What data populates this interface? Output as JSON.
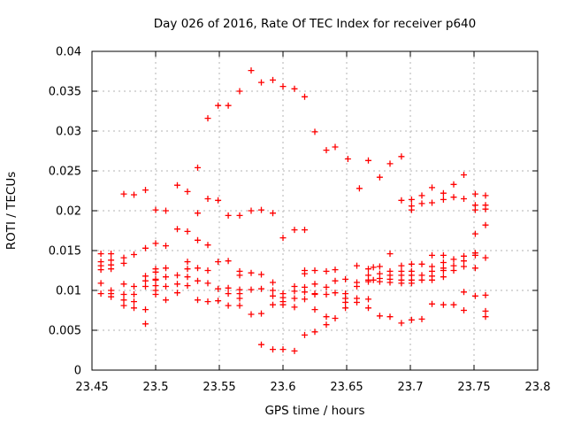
{
  "window": {
    "background": "#ffffff"
  },
  "chart_data": {
    "type": "scatter",
    "title": "Day 026 of 2016, Rate Of TEC Index for receiver p640",
    "xlabel": "GPS time / hours",
    "ylabel": "ROTI / TECUs",
    "xlim": [
      23.45,
      23.8
    ],
    "ylim": [
      0,
      0.04
    ],
    "grid": true,
    "legend": "none",
    "marker": "plus",
    "marker_color": "#ff0000",
    "grid_color": "#b3b3b3",
    "axis_color": "#000000",
    "xticks": [
      23.45,
      23.5,
      23.55,
      23.6,
      23.65,
      23.7,
      23.75,
      23.8
    ],
    "xtick_labels": [
      "23.45",
      "23.5",
      "23.55",
      "23.6",
      "23.65",
      "23.7",
      "23.75",
      "23.8"
    ],
    "yticks": [
      0,
      0.005,
      0.01,
      0.015,
      0.02,
      0.025,
      0.03,
      0.035,
      0.04
    ],
    "ytick_labels": [
      "0",
      "0.005",
      "0.01",
      "0.015",
      "0.02",
      "0.025",
      "0.03",
      "0.035",
      "0.04"
    ],
    "points": [
      [
        23.457,
        0.0146
      ],
      [
        23.457,
        0.0136
      ],
      [
        23.457,
        0.0131
      ],
      [
        23.457,
        0.0126
      ],
      [
        23.457,
        0.0109
      ],
      [
        23.457,
        0.0096
      ],
      [
        23.465,
        0.0146
      ],
      [
        23.465,
        0.0138
      ],
      [
        23.465,
        0.0132
      ],
      [
        23.465,
        0.0127
      ],
      [
        23.465,
        0.01
      ],
      [
        23.465,
        0.0096
      ],
      [
        23.465,
        0.0092
      ],
      [
        23.475,
        0.0221
      ],
      [
        23.475,
        0.0141
      ],
      [
        23.475,
        0.0134
      ],
      [
        23.475,
        0.0108
      ],
      [
        23.475,
        0.0095
      ],
      [
        23.475,
        0.0088
      ],
      [
        23.475,
        0.0081
      ],
      [
        23.483,
        0.022
      ],
      [
        23.483,
        0.0145
      ],
      [
        23.483,
        0.0105
      ],
      [
        23.483,
        0.0095
      ],
      [
        23.483,
        0.0086
      ],
      [
        23.483,
        0.0078
      ],
      [
        23.492,
        0.0226
      ],
      [
        23.492,
        0.0153
      ],
      [
        23.492,
        0.0118
      ],
      [
        23.492,
        0.0112
      ],
      [
        23.492,
        0.0105
      ],
      [
        23.492,
        0.0076
      ],
      [
        23.492,
        0.0058
      ],
      [
        23.5,
        0.0201
      ],
      [
        23.5,
        0.0159
      ],
      [
        23.5,
        0.0127
      ],
      [
        23.5,
        0.0123
      ],
      [
        23.5,
        0.0114
      ],
      [
        23.5,
        0.0113
      ],
      [
        23.5,
        0.0106
      ],
      [
        23.5,
        0.01
      ],
      [
        23.5,
        0.0095
      ],
      [
        23.508,
        0.02
      ],
      [
        23.508,
        0.0156
      ],
      [
        23.508,
        0.0128
      ],
      [
        23.508,
        0.0117
      ],
      [
        23.508,
        0.0105
      ],
      [
        23.508,
        0.0088
      ],
      [
        23.517,
        0.0232
      ],
      [
        23.517,
        0.0177
      ],
      [
        23.517,
        0.0119
      ],
      [
        23.517,
        0.0108
      ],
      [
        23.517,
        0.0097
      ],
      [
        23.525,
        0.0224
      ],
      [
        23.525,
        0.0174
      ],
      [
        23.525,
        0.0136
      ],
      [
        23.525,
        0.0127
      ],
      [
        23.525,
        0.0117
      ],
      [
        23.525,
        0.0106
      ],
      [
        23.533,
        0.0254
      ],
      [
        23.533,
        0.0197
      ],
      [
        23.533,
        0.0163
      ],
      [
        23.533,
        0.0128
      ],
      [
        23.533,
        0.0112
      ],
      [
        23.533,
        0.0088
      ],
      [
        23.541,
        0.0316
      ],
      [
        23.541,
        0.0215
      ],
      [
        23.541,
        0.0157
      ],
      [
        23.541,
        0.0125
      ],
      [
        23.541,
        0.0109
      ],
      [
        23.541,
        0.0086
      ],
      [
        23.549,
        0.0332
      ],
      [
        23.549,
        0.0213
      ],
      [
        23.549,
        0.0136
      ],
      [
        23.549,
        0.0136
      ],
      [
        23.549,
        0.0102
      ],
      [
        23.549,
        0.0087
      ],
      [
        23.557,
        0.0332
      ],
      [
        23.557,
        0.0194
      ],
      [
        23.557,
        0.0137
      ],
      [
        23.557,
        0.0103
      ],
      [
        23.557,
        0.0096
      ],
      [
        23.557,
        0.0081
      ],
      [
        23.566,
        0.035
      ],
      [
        23.566,
        0.0194
      ],
      [
        23.566,
        0.0124
      ],
      [
        23.566,
        0.0119
      ],
      [
        23.566,
        0.0101
      ],
      [
        23.566,
        0.0096
      ],
      [
        23.566,
        0.009
      ],
      [
        23.566,
        0.0081
      ],
      [
        23.575,
        0.0376
      ],
      [
        23.575,
        0.02
      ],
      [
        23.575,
        0.0122
      ],
      [
        23.575,
        0.0101
      ],
      [
        23.575,
        0.007
      ],
      [
        23.575,
        0.007
      ],
      [
        23.583,
        0.0361
      ],
      [
        23.583,
        0.0201
      ],
      [
        23.583,
        0.012
      ],
      [
        23.583,
        0.0102
      ],
      [
        23.583,
        0.0071
      ],
      [
        23.583,
        0.0032
      ],
      [
        23.592,
        0.0364
      ],
      [
        23.592,
        0.0197
      ],
      [
        23.592,
        0.011
      ],
      [
        23.592,
        0.01
      ],
      [
        23.592,
        0.0093
      ],
      [
        23.592,
        0.0082
      ],
      [
        23.592,
        0.0026
      ],
      [
        23.6,
        0.0356
      ],
      [
        23.6,
        0.0166
      ],
      [
        23.6,
        0.0096
      ],
      [
        23.6,
        0.0091
      ],
      [
        23.6,
        0.0086
      ],
      [
        23.6,
        0.0082
      ],
      [
        23.6,
        0.0026
      ],
      [
        23.609,
        0.0353
      ],
      [
        23.609,
        0.0176
      ],
      [
        23.609,
        0.0105
      ],
      [
        23.609,
        0.0099
      ],
      [
        23.609,
        0.009
      ],
      [
        23.609,
        0.0079
      ],
      [
        23.609,
        0.0024
      ],
      [
        23.617,
        0.0343
      ],
      [
        23.617,
        0.0176
      ],
      [
        23.617,
        0.0125
      ],
      [
        23.617,
        0.0121
      ],
      [
        23.617,
        0.0104
      ],
      [
        23.617,
        0.0098
      ],
      [
        23.617,
        0.0089
      ],
      [
        23.617,
        0.0044
      ],
      [
        23.625,
        0.0299
      ],
      [
        23.625,
        0.0125
      ],
      [
        23.625,
        0.0108
      ],
      [
        23.625,
        0.0096
      ],
      [
        23.625,
        0.0095
      ],
      [
        23.625,
        0.0076
      ],
      [
        23.625,
        0.0048
      ],
      [
        23.634,
        0.0276
      ],
      [
        23.634,
        0.0124
      ],
      [
        23.634,
        0.0104
      ],
      [
        23.634,
        0.0095
      ],
      [
        23.634,
        0.0067
      ],
      [
        23.634,
        0.0057
      ],
      [
        23.641,
        0.028
      ],
      [
        23.641,
        0.0126
      ],
      [
        23.641,
        0.0112
      ],
      [
        23.641,
        0.0097
      ],
      [
        23.641,
        0.0065
      ],
      [
        23.649,
        0.0114
      ],
      [
        23.649,
        0.0114
      ],
      [
        23.649,
        0.0096
      ],
      [
        23.649,
        0.009
      ],
      [
        23.649,
        0.0085
      ],
      [
        23.649,
        0.0078
      ],
      [
        23.651,
        0.0265
      ],
      [
        23.658,
        0.0131
      ],
      [
        23.658,
        0.011
      ],
      [
        23.658,
        0.0105
      ],
      [
        23.658,
        0.009
      ],
      [
        23.658,
        0.0085
      ],
      [
        23.66,
        0.0228
      ],
      [
        23.667,
        0.0263
      ],
      [
        23.667,
        0.0127
      ],
      [
        23.667,
        0.0119
      ],
      [
        23.667,
        0.0113
      ],
      [
        23.667,
        0.0111
      ],
      [
        23.667,
        0.0089
      ],
      [
        23.667,
        0.0078
      ],
      [
        23.671,
        0.0129
      ],
      [
        23.671,
        0.0113
      ],
      [
        23.676,
        0.0242
      ],
      [
        23.676,
        0.013
      ],
      [
        23.676,
        0.0121
      ],
      [
        23.676,
        0.0115
      ],
      [
        23.676,
        0.0111
      ],
      [
        23.676,
        0.0068
      ],
      [
        23.684,
        0.0259
      ],
      [
        23.684,
        0.0146
      ],
      [
        23.684,
        0.0124
      ],
      [
        23.684,
        0.0119
      ],
      [
        23.684,
        0.0114
      ],
      [
        23.684,
        0.011
      ],
      [
        23.684,
        0.0067
      ],
      [
        23.693,
        0.0268
      ],
      [
        23.693,
        0.0213
      ],
      [
        23.693,
        0.0131
      ],
      [
        23.693,
        0.0124
      ],
      [
        23.693,
        0.0119
      ],
      [
        23.693,
        0.0113
      ],
      [
        23.693,
        0.0109
      ],
      [
        23.693,
        0.0059
      ],
      [
        23.701,
        0.0214
      ],
      [
        23.701,
        0.0206
      ],
      [
        23.701,
        0.0201
      ],
      [
        23.701,
        0.0133
      ],
      [
        23.701,
        0.0124
      ],
      [
        23.701,
        0.0119
      ],
      [
        23.701,
        0.0113
      ],
      [
        23.701,
        0.0109
      ],
      [
        23.701,
        0.0063
      ],
      [
        23.709,
        0.0219
      ],
      [
        23.709,
        0.0209
      ],
      [
        23.709,
        0.0133
      ],
      [
        23.709,
        0.0119
      ],
      [
        23.709,
        0.0119
      ],
      [
        23.709,
        0.0113
      ],
      [
        23.709,
        0.0064
      ],
      [
        23.717,
        0.0229
      ],
      [
        23.717,
        0.021
      ],
      [
        23.717,
        0.0144
      ],
      [
        23.717,
        0.013
      ],
      [
        23.717,
        0.0124
      ],
      [
        23.717,
        0.0118
      ],
      [
        23.717,
        0.0113
      ],
      [
        23.717,
        0.0083
      ],
      [
        23.726,
        0.0222
      ],
      [
        23.726,
        0.0214
      ],
      [
        23.726,
        0.0144
      ],
      [
        23.726,
        0.0135
      ],
      [
        23.726,
        0.0128
      ],
      [
        23.726,
        0.0125
      ],
      [
        23.726,
        0.0117
      ],
      [
        23.726,
        0.0082
      ],
      [
        23.734,
        0.0233
      ],
      [
        23.734,
        0.0217
      ],
      [
        23.734,
        0.0139
      ],
      [
        23.734,
        0.0139
      ],
      [
        23.734,
        0.0131
      ],
      [
        23.734,
        0.0125
      ],
      [
        23.734,
        0.0082
      ],
      [
        23.742,
        0.0245
      ],
      [
        23.742,
        0.0215
      ],
      [
        23.742,
        0.0143
      ],
      [
        23.742,
        0.0137
      ],
      [
        23.742,
        0.013
      ],
      [
        23.742,
        0.0098
      ],
      [
        23.742,
        0.0075
      ],
      [
        23.751,
        0.0221
      ],
      [
        23.751,
        0.0207
      ],
      [
        23.751,
        0.0201
      ],
      [
        23.751,
        0.0171
      ],
      [
        23.751,
        0.0147
      ],
      [
        23.751,
        0.0144
      ],
      [
        23.751,
        0.0128
      ],
      [
        23.751,
        0.0093
      ],
      [
        23.759,
        0.0219
      ],
      [
        23.759,
        0.0207
      ],
      [
        23.759,
        0.0202
      ],
      [
        23.759,
        0.0182
      ],
      [
        23.759,
        0.0141
      ],
      [
        23.759,
        0.0094
      ],
      [
        23.759,
        0.0074
      ],
      [
        23.759,
        0.0067
      ]
    ]
  }
}
